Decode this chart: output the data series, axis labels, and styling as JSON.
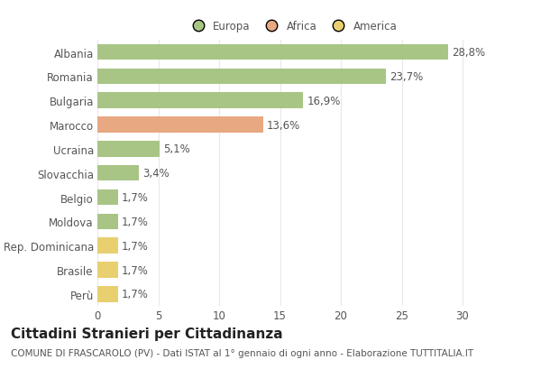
{
  "categories": [
    "Albania",
    "Romania",
    "Bulgaria",
    "Marocco",
    "Ucraina",
    "Slovacchia",
    "Belgio",
    "Moldova",
    "Rep. Dominicana",
    "Brasile",
    "Perù"
  ],
  "values": [
    28.8,
    23.7,
    16.9,
    13.6,
    5.1,
    3.4,
    1.7,
    1.7,
    1.7,
    1.7,
    1.7
  ],
  "labels": [
    "28,8%",
    "23,7%",
    "16,9%",
    "13,6%",
    "5,1%",
    "3,4%",
    "1,7%",
    "1,7%",
    "1,7%",
    "1,7%",
    "1,7%"
  ],
  "colors": [
    "#a8c585",
    "#a8c585",
    "#a8c585",
    "#e8a882",
    "#a8c585",
    "#a8c585",
    "#a8c585",
    "#a8c585",
    "#e8d070",
    "#e8d070",
    "#e8d070"
  ],
  "legend_labels": [
    "Europa",
    "Africa",
    "America"
  ],
  "legend_colors": [
    "#a8c585",
    "#e8a882",
    "#e8d070"
  ],
  "title": "Cittadini Stranieri per Cittadinanza",
  "subtitle": "COMUNE DI FRASCAROLO (PV) - Dati ISTAT al 1° gennaio di ogni anno - Elaborazione TUTTITALIA.IT",
  "xlim": [
    0,
    32
  ],
  "xticks": [
    0,
    5,
    10,
    15,
    20,
    25,
    30
  ],
  "background_color": "#ffffff",
  "grid_color": "#e8e8e8",
  "bar_height": 0.65,
  "title_fontsize": 11,
  "subtitle_fontsize": 7.5,
  "label_fontsize": 8.5,
  "tick_fontsize": 8.5
}
